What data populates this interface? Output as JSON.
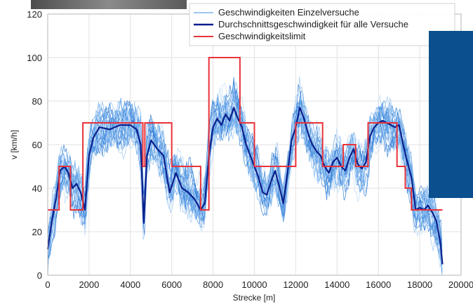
{
  "chart_data": {
    "type": "line",
    "xlabel": "Strecke [m]",
    "ylabel": "v [km/h]",
    "xlim": [
      0,
      20000
    ],
    "ylim": [
      0,
      120
    ],
    "xticks": [
      0,
      2000,
      4000,
      6000,
      8000,
      10000,
      12000,
      14000,
      16000,
      18000,
      20000
    ],
    "yticks": [
      0,
      20,
      40,
      60,
      80,
      100,
      120
    ],
    "grid": true,
    "legend_position": "top-right",
    "legend": [
      "Geschwindigkeiten Einzelversuche",
      "Durchschnittsgeschwindigkeit für alle Versuche",
      "Geschwindigkeitslimit"
    ],
    "colors": {
      "individual": "#4a90e2",
      "average": "#0a1f8c",
      "limit": "#e8333a",
      "overlay_panel": "#0c4f8e",
      "photo_strip": "#6b6b6b"
    },
    "series": [
      {
        "name": "Geschwindigkeitslimit",
        "x": [
          0,
          550,
          550,
          1100,
          1100,
          1700,
          1700,
          4600,
          4600,
          4700,
          4700,
          6000,
          6000,
          7400,
          7400,
          7800,
          7800,
          9300,
          9300,
          10000,
          10000,
          12000,
          12000,
          13300,
          13300,
          14300,
          14300,
          14900,
          14900,
          15500,
          15500,
          16900,
          16900,
          17300,
          17300,
          17600,
          17600,
          19100
        ],
        "y": [
          30,
          30,
          50,
          50,
          30,
          30,
          70,
          70,
          50,
          50,
          70,
          70,
          50,
          50,
          30,
          30,
          100,
          100,
          70,
          70,
          50,
          50,
          70,
          70,
          50,
          50,
          60,
          60,
          50,
          50,
          70,
          70,
          50,
          50,
          40,
          40,
          30,
          30
        ]
      },
      {
        "name": "Durchschnittsgeschwindigkeit für alle Versuche",
        "x": [
          0,
          200,
          400,
          600,
          800,
          1000,
          1200,
          1400,
          1600,
          1800,
          2000,
          2200,
          2500,
          3000,
          3500,
          4000,
          4300,
          4500,
          4650,
          4800,
          5000,
          5300,
          5600,
          5900,
          6200,
          6500,
          6800,
          7100,
          7400,
          7600,
          7800,
          8000,
          8200,
          8400,
          8600,
          8800,
          9000,
          9200,
          9400,
          9600,
          9800,
          10000,
          10200,
          10400,
          10600,
          10800,
          11000,
          11200,
          11400,
          11600,
          11800,
          12000,
          12200,
          12400,
          12600,
          12800,
          13000,
          13200,
          13400,
          13600,
          13800,
          14000,
          14200,
          14400,
          14600,
          14800,
          15000,
          15200,
          15400,
          15600,
          15800,
          16000,
          16200,
          16400,
          16600,
          16800,
          17000,
          17200,
          17400,
          17600,
          17800,
          18000,
          18200,
          18400,
          18600,
          18800,
          19000,
          19100
        ],
        "y": [
          12,
          25,
          35,
          48,
          50,
          47,
          40,
          42,
          38,
          30,
          55,
          63,
          68,
          67,
          69,
          69,
          67,
          60,
          24,
          55,
          62,
          58,
          55,
          38,
          47,
          40,
          38,
          35,
          30,
          33,
          55,
          68,
          72,
          69,
          74,
          71,
          77,
          72,
          68,
          60,
          55,
          50,
          45,
          38,
          37,
          43,
          48,
          41,
          33,
          47,
          62,
          68,
          77,
          72,
          65,
          60,
          57,
          55,
          50,
          47,
          52,
          54,
          50,
          48,
          54,
          58,
          51,
          49,
          52,
          64,
          68,
          70,
          71,
          70,
          69,
          68,
          69,
          60,
          52,
          45,
          30,
          31,
          30,
          32,
          29,
          25,
          15,
          5
        ]
      }
    ],
    "individual_trials_count": 25
  }
}
